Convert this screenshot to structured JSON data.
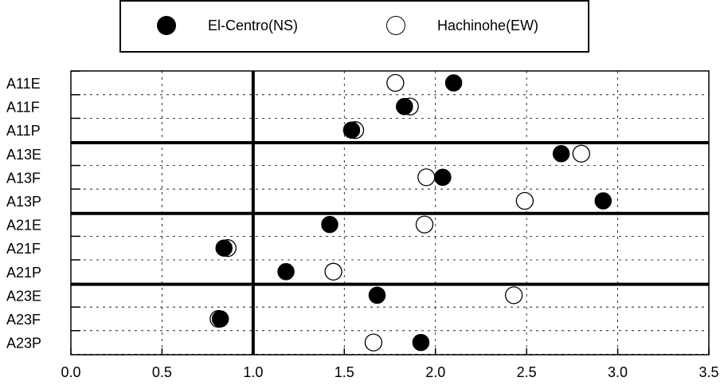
{
  "chart_data": {
    "type": "scatter",
    "categories": [
      "A11E",
      "A11F",
      "A11P",
      "A13E",
      "A13F",
      "A13P",
      "A21E",
      "A21F",
      "A21P",
      "A23E",
      "A23F",
      "A23P"
    ],
    "series": [
      {
        "name": "El-Centro(NS)",
        "marker": "filled-circle",
        "color": "#000000",
        "values": [
          2.1,
          1.83,
          1.54,
          2.69,
          2.04,
          2.92,
          1.42,
          0.84,
          1.18,
          1.68,
          0.82,
          1.92
        ]
      },
      {
        "name": "Hachinohe(EW)",
        "marker": "open-circle",
        "color": "#000000",
        "values": [
          1.78,
          1.86,
          1.56,
          2.8,
          1.95,
          2.49,
          1.94,
          0.86,
          1.44,
          2.43,
          0.81,
          1.66
        ]
      }
    ],
    "xticks": [
      "0.0",
      "0.5",
      "1.0",
      "1.5",
      "2.0",
      "2.5",
      "3.0",
      "3.5"
    ],
    "xlim": [
      0.0,
      3.5
    ],
    "reference_line_x": 1.0,
    "group_separators_after": [
      "A11P",
      "A13P",
      "A21P"
    ],
    "grid": true,
    "legend_position": "top"
  }
}
